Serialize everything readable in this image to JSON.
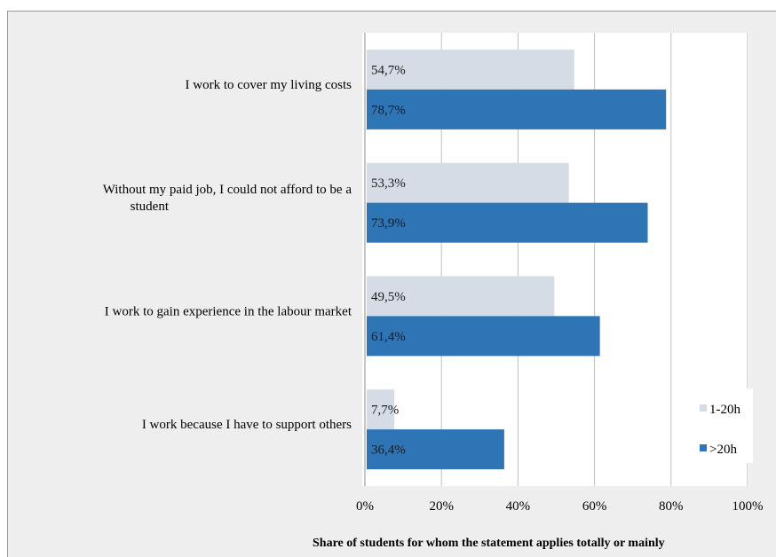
{
  "chart_data": {
    "type": "bar",
    "orientation": "horizontal",
    "categories": [
      "I work to cover my living costs",
      "Without my paid job, I could not afford to be a student",
      "I work to gain experience in the labour market",
      "I work because I have to support others"
    ],
    "category_lines": [
      [
        "I work to cover my living costs"
      ],
      [
        "Without my paid job, I could not afford to be a",
        "student"
      ],
      [
        "I work to gain experience in the labour market"
      ],
      [
        "I work because I have to support others"
      ]
    ],
    "series": [
      {
        "name": "1-20h",
        "color": "#d6dce5",
        "values": [
          54.7,
          53.3,
          49.5,
          7.7
        ],
        "labels": [
          "54,7%",
          "53,3%",
          "49,5%",
          "7,7%"
        ]
      },
      {
        "name": ">20h",
        "color": "#2e75b6",
        "values": [
          78.7,
          73.9,
          61.4,
          36.4
        ],
        "labels": [
          "78,7%",
          "73,9%",
          "61,4%",
          "36,4%"
        ]
      }
    ],
    "xlim": [
      0,
      100
    ],
    "x_ticks": [
      0,
      20,
      40,
      60,
      80,
      100
    ],
    "x_tick_labels": [
      "0%",
      "20%",
      "40%",
      "60%",
      "80%",
      "100%"
    ],
    "xlabel": "Share of students for whom the statement applies totally or mainly",
    "grid": true,
    "legend_position": "right",
    "colors": {
      "background": "#eeeeee",
      "plot_area": "#ffffff",
      "gridline": "#bfbfbf"
    }
  }
}
